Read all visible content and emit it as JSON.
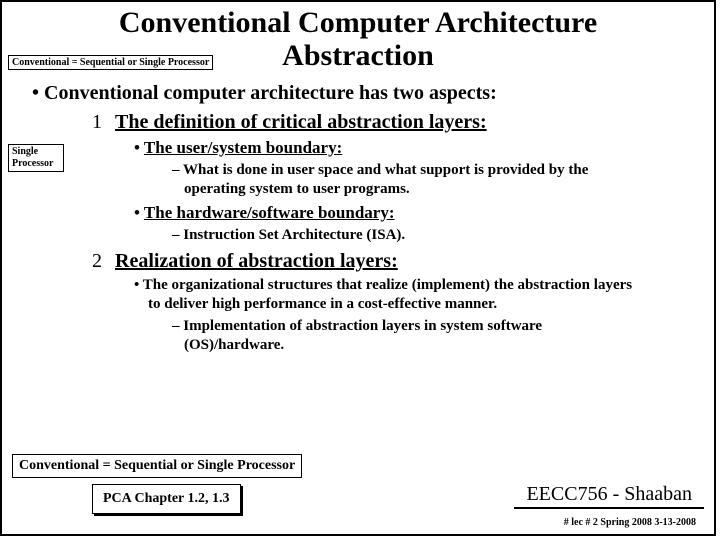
{
  "title_line1": "Conventional Computer Architecture",
  "title_line2": "Abstraction",
  "top_note": "Conventional = Sequential or Single Processor",
  "side_note": "Single Processor",
  "bullet_main": "•  Conventional computer architecture has two aspects:",
  "item1_num": "1",
  "item1_text": "The definition of critical abstraction layers:",
  "item1_sub1_bullet": "•  ",
  "item1_sub1_text": "The user/system boundary:",
  "item1_sub1_dash": "– What is done in user space and what support is provided by the operating system to user programs.",
  "item1_sub2_bullet": "•  ",
  "item1_sub2_text": "The hardware/software boundary:",
  "item1_sub2_dash": "– Instruction Set Architecture (ISA).",
  "item2_num": "2",
  "item2_text": "Realization of abstraction layers:",
  "item2_sub1": "•  The organizational structures that realize (implement) the abstraction layers to deliver high performance in a cost-effective manner.",
  "item2_sub1_dash": "– Implementation of abstraction layers in system software (OS)/hardware.",
  "footer1": "Conventional = Sequential or Single Processor",
  "footer2": "PCA Chapter 1.2, 1.3",
  "course": "EECC756 - Shaaban",
  "meta": "#   lec # 2    Spring 2008   3-13-2008",
  "colors": {
    "text": "#000000",
    "bg": "#ffffff",
    "border": "#000000"
  },
  "fonts": {
    "family": "Times New Roman",
    "title_size": 30,
    "body_size": 20
  }
}
